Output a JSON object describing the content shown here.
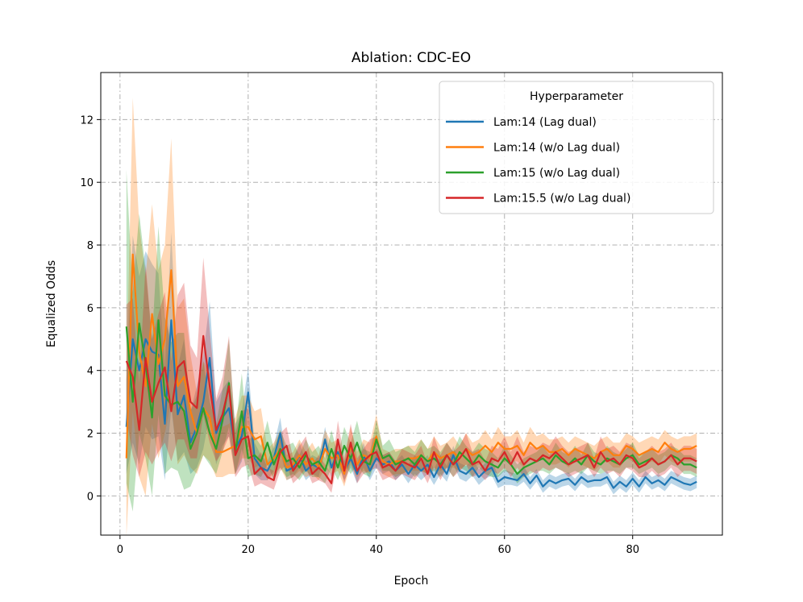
{
  "chart_data": {
    "type": "line",
    "title": "Ablation: CDC-EO",
    "xlabel": "Epoch",
    "ylabel": "Equalized Odds",
    "xlim": [
      -3,
      94
    ],
    "ylim": [
      -1.25,
      13.5
    ],
    "xticks": [
      0,
      20,
      40,
      60,
      80
    ],
    "yticks": [
      0,
      2,
      4,
      6,
      8,
      10,
      12
    ],
    "grid": true,
    "legend": {
      "title": "Hyperparameter",
      "placement": "upper-right"
    },
    "series": [
      {
        "name": "Lam:14 (Lag dual)",
        "color": "#1f77b4",
        "start_epoch": 1,
        "values": [
          2.2,
          5.0,
          4.0,
          5.0,
          4.6,
          4.5,
          2.3,
          5.6,
          2.6,
          3.2,
          1.7,
          2.2,
          3.0,
          4.4,
          2.0,
          2.5,
          2.8,
          1.5,
          1.9,
          3.3,
          1.2,
          0.9,
          0.8,
          1.2,
          2.0,
          0.8,
          0.9,
          1.3,
          0.8,
          1.0,
          0.9,
          1.8,
          0.9,
          1.4,
          0.8,
          1.2,
          0.7,
          1.3,
          0.8,
          1.2,
          1.0,
          1.1,
          0.8,
          1.0,
          0.7,
          1.0,
          0.8,
          1.0,
          0.6,
          1.0,
          0.7,
          1.3,
          0.8,
          0.7,
          0.9,
          0.6,
          0.8,
          0.9,
          0.45,
          0.6,
          0.55,
          0.5,
          0.7,
          0.4,
          0.65,
          0.3,
          0.5,
          0.4,
          0.5,
          0.55,
          0.35,
          0.6,
          0.45,
          0.5,
          0.5,
          0.6,
          0.25,
          0.45,
          0.3,
          0.55,
          0.3,
          0.6,
          0.4,
          0.5,
          0.35,
          0.6,
          0.5,
          0.4,
          0.35,
          0.45
        ],
        "std": [
          1.5,
          3.3,
          3.0,
          2.8,
          2.8,
          2.6,
          1.8,
          2.8,
          1.5,
          1.8,
          1.0,
          1.3,
          1.5,
          1.8,
          1.0,
          0.9,
          0.9,
          0.8,
          0.8,
          0.8,
          0.5,
          0.4,
          0.3,
          0.4,
          0.5,
          0.3,
          0.3,
          0.4,
          0.3,
          0.3,
          0.3,
          0.4,
          0.3,
          0.4,
          0.3,
          0.3,
          0.3,
          0.4,
          0.3,
          0.3,
          0.3,
          0.3,
          0.3,
          0.3,
          0.3,
          0.3,
          0.3,
          0.3,
          0.25,
          0.3,
          0.25,
          0.3,
          0.25,
          0.25,
          0.25,
          0.25,
          0.25,
          0.25,
          0.2,
          0.25,
          0.2,
          0.2,
          0.25,
          0.2,
          0.2,
          0.2,
          0.2,
          0.2,
          0.2,
          0.2,
          0.2,
          0.2,
          0.2,
          0.2,
          0.2,
          0.2,
          0.2,
          0.2,
          0.2,
          0.2,
          0.2,
          0.2,
          0.2,
          0.2,
          0.2,
          0.2,
          0.2,
          0.2,
          0.2,
          0.2
        ]
      },
      {
        "name": "Lam:14 (w/o Lag dual)",
        "color": "#ff7f0e",
        "start_epoch": 1,
        "values": [
          1.2,
          7.7,
          4.6,
          3.5,
          5.8,
          4.2,
          5.0,
          7.2,
          3.5,
          3.8,
          2.7,
          2.0,
          2.8,
          2.5,
          1.4,
          1.4,
          1.5,
          1.6,
          2.2,
          2.2,
          1.8,
          1.9,
          1.0,
          1.2,
          1.5,
          0.9,
          1.0,
          1.3,
          1.0,
          1.2,
          0.9,
          1.5,
          1.2,
          1.3,
          0.7,
          1.6,
          1.0,
          1.3,
          1.2,
          1.9,
          1.1,
          1.0,
          1.1,
          1.1,
          1.2,
          1.2,
          1.3,
          1.1,
          1.4,
          1.2,
          1.3,
          1.4,
          1.2,
          1.5,
          1.3,
          1.4,
          1.6,
          1.4,
          1.7,
          1.5,
          1.5,
          1.6,
          1.3,
          1.7,
          1.5,
          1.6,
          1.4,
          1.4,
          1.5,
          1.3,
          1.5,
          1.4,
          1.3,
          1.2,
          1.4,
          1.5,
          1.3,
          1.3,
          1.6,
          1.5,
          1.3,
          1.4,
          1.5,
          1.4,
          1.7,
          1.5,
          1.4,
          1.5,
          1.5,
          1.6
        ],
        "std": [
          2.5,
          5.0,
          4.0,
          3.5,
          3.5,
          3.0,
          3.0,
          4.2,
          2.5,
          2.5,
          1.8,
          1.3,
          1.5,
          1.4,
          0.8,
          0.8,
          0.8,
          0.9,
          1.0,
          1.0,
          0.9,
          0.9,
          0.5,
          0.5,
          0.6,
          0.4,
          0.4,
          0.5,
          0.4,
          0.5,
          0.4,
          0.6,
          0.5,
          0.5,
          0.4,
          0.6,
          0.4,
          0.5,
          0.5,
          0.7,
          0.4,
          0.4,
          0.4,
          0.4,
          0.4,
          0.4,
          0.5,
          0.4,
          0.5,
          0.4,
          0.4,
          0.5,
          0.4,
          0.5,
          0.4,
          0.4,
          0.5,
          0.4,
          0.5,
          0.4,
          0.4,
          0.5,
          0.4,
          0.5,
          0.4,
          0.4,
          0.4,
          0.4,
          0.4,
          0.4,
          0.4,
          0.4,
          0.4,
          0.4,
          0.4,
          0.4,
          0.4,
          0.4,
          0.4,
          0.4,
          0.4,
          0.4,
          0.4,
          0.4,
          0.4,
          0.4,
          0.4,
          0.4,
          0.4,
          0.4
        ]
      },
      {
        "name": "Lam:15 (w/o Lag dual)",
        "color": "#2ca02c",
        "start_epoch": 1,
        "values": [
          5.4,
          3.0,
          5.5,
          4.2,
          2.5,
          5.6,
          3.2,
          2.9,
          3.0,
          2.7,
          1.5,
          2.0,
          2.8,
          2.0,
          1.5,
          2.4,
          3.6,
          1.4,
          2.7,
          1.2,
          1.3,
          1.1,
          1.7,
          1.0,
          1.5,
          1.1,
          1.2,
          0.9,
          1.3,
          1.0,
          1.1,
          0.8,
          1.5,
          0.9,
          1.6,
          1.2,
          1.7,
          1.1,
          1.0,
          1.8,
          1.2,
          1.3,
          1.0,
          1.1,
          1.2,
          1.0,
          1.3,
          1.1,
          1.2,
          1.0,
          1.3,
          1.0,
          1.4,
          1.2,
          1.0,
          1.3,
          1.1,
          1.0,
          0.9,
          1.2,
          1.0,
          0.7,
          0.9,
          1.0,
          1.1,
          1.2,
          1.0,
          1.3,
          1.1,
          1.0,
          1.2,
          1.0,
          1.3,
          1.1,
          1.0,
          1.2,
          1.1,
          1.0,
          1.2,
          1.3,
          1.0,
          1.1,
          1.2,
          1.0,
          1.1,
          1.3,
          1.2,
          1.0,
          1.0,
          0.9
        ],
        "std": [
          5.0,
          3.5,
          3.5,
          3.0,
          2.5,
          3.0,
          2.5,
          2.0,
          2.2,
          2.5,
          1.2,
          1.2,
          1.5,
          1.0,
          0.8,
          1.0,
          1.4,
          0.7,
          1.2,
          0.6,
          0.6,
          0.5,
          0.7,
          0.5,
          0.6,
          0.5,
          0.5,
          0.4,
          0.5,
          0.4,
          0.5,
          0.4,
          0.6,
          0.4,
          0.6,
          0.5,
          0.7,
          0.4,
          0.4,
          0.6,
          0.4,
          0.5,
          0.4,
          0.4,
          0.4,
          0.4,
          0.5,
          0.4,
          0.4,
          0.4,
          0.4,
          0.4,
          0.5,
          0.4,
          0.4,
          0.4,
          0.4,
          0.4,
          0.3,
          0.4,
          0.3,
          0.3,
          0.3,
          0.3,
          0.3,
          0.4,
          0.3,
          0.4,
          0.3,
          0.3,
          0.4,
          0.3,
          0.4,
          0.3,
          0.3,
          0.4,
          0.3,
          0.3,
          0.3,
          0.4,
          0.3,
          0.3,
          0.3,
          0.3,
          0.3,
          0.3,
          0.3,
          0.3,
          0.3,
          0.3
        ]
      },
      {
        "name": "Lam:15.5 (w/o Lag dual)",
        "color": "#d62728",
        "start_epoch": 1,
        "values": [
          4.3,
          3.8,
          2.1,
          4.4,
          3.0,
          3.6,
          4.1,
          2.7,
          4.1,
          4.3,
          3.0,
          2.8,
          5.1,
          3.5,
          2.1,
          2.6,
          3.5,
          1.3,
          1.8,
          1.9,
          0.7,
          0.9,
          0.6,
          0.5,
          1.4,
          1.6,
          0.8,
          1.1,
          1.4,
          0.7,
          0.9,
          0.7,
          0.4,
          1.8,
          0.8,
          1.7,
          0.8,
          1.1,
          1.3,
          1.4,
          0.9,
          1.0,
          0.8,
          1.1,
          1.0,
          0.9,
          1.2,
          0.7,
          1.4,
          0.9,
          1.3,
          1.0,
          1.2,
          1.5,
          1.0,
          1.1,
          0.8,
          1.2,
          1.1,
          1.4,
          1.0,
          1.4,
          1.0,
          1.2,
          1.1,
          1.3,
          1.2,
          1.4,
          1.2,
          1.0,
          1.1,
          1.2,
          1.3,
          0.9,
          1.4,
          1.1,
          1.2,
          1.0,
          1.3,
          1.2,
          0.9,
          1.0,
          1.2,
          1.0,
          1.1,
          1.3,
          1.0,
          1.2,
          1.2,
          1.1
        ],
        "std": [
          1.8,
          2.5,
          1.5,
          3.0,
          2.0,
          2.2,
          2.4,
          1.6,
          2.3,
          2.5,
          1.8,
          1.6,
          2.5,
          1.8,
          1.0,
          1.2,
          1.6,
          0.7,
          0.9,
          0.9,
          0.4,
          0.5,
          0.3,
          0.3,
          0.6,
          0.6,
          0.4,
          0.5,
          0.5,
          0.3,
          0.4,
          0.3,
          0.3,
          0.6,
          0.4,
          0.6,
          0.4,
          0.4,
          0.5,
          0.5,
          0.4,
          0.4,
          0.3,
          0.4,
          0.4,
          0.4,
          0.4,
          0.3,
          0.5,
          0.4,
          0.4,
          0.4,
          0.4,
          0.5,
          0.4,
          0.4,
          0.3,
          0.4,
          0.4,
          0.5,
          0.4,
          0.5,
          0.4,
          0.4,
          0.4,
          0.4,
          0.4,
          0.5,
          0.4,
          0.4,
          0.4,
          0.4,
          0.4,
          0.3,
          0.5,
          0.4,
          0.4,
          0.4,
          0.4,
          0.4,
          0.3,
          0.4,
          0.4,
          0.4,
          0.4,
          0.4,
          0.4,
          0.4,
          0.4,
          0.4
        ]
      }
    ]
  }
}
